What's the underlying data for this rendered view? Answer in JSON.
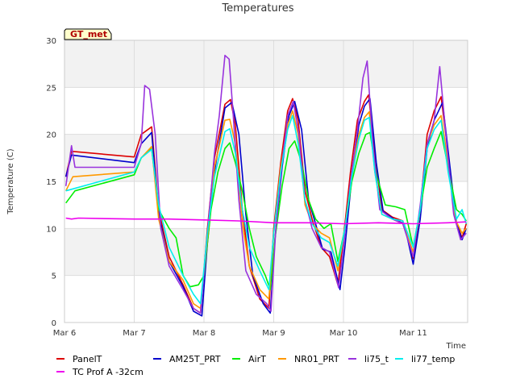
{
  "chart_data": {
    "type": "line",
    "title": "Temperatures",
    "xlabel": "Time",
    "ylabel": "Temperature (C)",
    "badge": "GT_met",
    "ylim": [
      0,
      30
    ],
    "yticks": [
      0,
      5,
      10,
      15,
      20,
      25,
      30
    ],
    "xlim": [
      0,
      5.78
    ],
    "xticks": [
      {
        "value": 0,
        "label": "Mar 6"
      },
      {
        "value": 1,
        "label": "Mar 7"
      },
      {
        "value": 2,
        "label": "Mar 8"
      },
      {
        "value": 3,
        "label": "Mar 9"
      },
      {
        "value": 4,
        "label": "Mar 10"
      },
      {
        "value": 5,
        "label": "Mar 11"
      }
    ],
    "grid": true,
    "legend_position": "bottom",
    "series": [
      {
        "name": "PanelT",
        "color": "#dd0000",
        "points": [
          [
            0.02,
            15.5
          ],
          [
            0.1,
            18.2
          ],
          [
            1.0,
            17.6
          ],
          [
            1.1,
            20.0
          ],
          [
            1.25,
            20.8
          ],
          [
            1.35,
            12.0
          ],
          [
            1.5,
            7.0
          ],
          [
            1.7,
            4.0
          ],
          [
            1.85,
            1.5
          ],
          [
            1.95,
            1.0
          ],
          [
            2.05,
            10.0
          ],
          [
            2.15,
            17.5
          ],
          [
            2.3,
            23.2
          ],
          [
            2.38,
            23.7
          ],
          [
            2.45,
            21.0
          ],
          [
            2.55,
            12.0
          ],
          [
            2.65,
            6.0
          ],
          [
            2.8,
            2.5
          ],
          [
            2.93,
            1.5
          ],
          [
            3.0,
            10.0
          ],
          [
            3.1,
            17.0
          ],
          [
            3.2,
            22.5
          ],
          [
            3.27,
            23.8
          ],
          [
            3.35,
            21.5
          ],
          [
            3.45,
            14.0
          ],
          [
            3.55,
            11.0
          ],
          [
            3.68,
            8.0
          ],
          [
            3.8,
            7.0
          ],
          [
            3.92,
            4.0
          ],
          [
            4.0,
            9.0
          ],
          [
            4.1,
            16.0
          ],
          [
            4.2,
            21.5
          ],
          [
            4.3,
            23.5
          ],
          [
            4.36,
            24.2
          ],
          [
            4.45,
            18.0
          ],
          [
            4.55,
            12.0
          ],
          [
            4.7,
            11.2
          ],
          [
            4.85,
            10.8
          ],
          [
            5.0,
            6.8
          ],
          [
            5.1,
            12.0
          ],
          [
            5.2,
            20.0
          ],
          [
            5.3,
            22.5
          ],
          [
            5.4,
            24.0
          ],
          [
            5.5,
            18.0
          ],
          [
            5.6,
            11.0
          ],
          [
            5.7,
            9.0
          ],
          [
            5.76,
            10.5
          ]
        ]
      },
      {
        "name": "AM25T_PRT",
        "color": "#0000cc",
        "points": [
          [
            0.02,
            15.5
          ],
          [
            0.1,
            17.8
          ],
          [
            1.0,
            17.0
          ],
          [
            1.1,
            19.0
          ],
          [
            1.25,
            20.2
          ],
          [
            1.35,
            11.5
          ],
          [
            1.5,
            6.5
          ],
          [
            1.7,
            3.8
          ],
          [
            1.85,
            1.2
          ],
          [
            1.97,
            0.7
          ],
          [
            2.05,
            8.5
          ],
          [
            2.15,
            16.0
          ],
          [
            2.3,
            22.8
          ],
          [
            2.4,
            23.4
          ],
          [
            2.5,
            20.0
          ],
          [
            2.6,
            11.5
          ],
          [
            2.7,
            5.0
          ],
          [
            2.85,
            2.0
          ],
          [
            2.95,
            1.0
          ],
          [
            3.02,
            9.0
          ],
          [
            3.12,
            16.5
          ],
          [
            3.22,
            22.0
          ],
          [
            3.3,
            23.5
          ],
          [
            3.4,
            20.5
          ],
          [
            3.5,
            13.0
          ],
          [
            3.6,
            10.5
          ],
          [
            3.7,
            7.8
          ],
          [
            3.82,
            7.5
          ],
          [
            3.95,
            3.5
          ],
          [
            4.02,
            8.0
          ],
          [
            4.12,
            15.5
          ],
          [
            4.22,
            21.0
          ],
          [
            4.3,
            23.0
          ],
          [
            4.38,
            23.8
          ],
          [
            4.47,
            17.0
          ],
          [
            4.57,
            11.8
          ],
          [
            4.72,
            11.0
          ],
          [
            4.87,
            10.5
          ],
          [
            5.0,
            6.2
          ],
          [
            5.1,
            11.0
          ],
          [
            5.2,
            18.5
          ],
          [
            5.3,
            21.5
          ],
          [
            5.42,
            23.4
          ],
          [
            5.52,
            17.0
          ],
          [
            5.62,
            10.5
          ],
          [
            5.7,
            8.8
          ],
          [
            5.76,
            10.0
          ]
        ]
      },
      {
        "name": "AirT",
        "color": "#00ee00",
        "points": [
          [
            0.02,
            12.7
          ],
          [
            0.15,
            14.0
          ],
          [
            1.0,
            15.7
          ],
          [
            1.1,
            17.5
          ],
          [
            1.25,
            18.5
          ],
          [
            1.35,
            12.0
          ],
          [
            1.5,
            10.0
          ],
          [
            1.6,
            9.0
          ],
          [
            1.7,
            5.0
          ],
          [
            1.8,
            3.8
          ],
          [
            1.92,
            4.0
          ],
          [
            2.0,
            5.0
          ],
          [
            2.1,
            12.0
          ],
          [
            2.2,
            16.0
          ],
          [
            2.3,
            18.5
          ],
          [
            2.37,
            19.1
          ],
          [
            2.45,
            17.0
          ],
          [
            2.55,
            14.0
          ],
          [
            2.65,
            10.0
          ],
          [
            2.75,
            7.0
          ],
          [
            2.88,
            5.0
          ],
          [
            2.95,
            3.5
          ],
          [
            3.02,
            9.0
          ],
          [
            3.12,
            14.5
          ],
          [
            3.22,
            18.5
          ],
          [
            3.3,
            19.3
          ],
          [
            3.4,
            17.0
          ],
          [
            3.5,
            13.0
          ],
          [
            3.6,
            11.0
          ],
          [
            3.72,
            10.0
          ],
          [
            3.82,
            10.5
          ],
          [
            3.92,
            6.5
          ],
          [
            4.02,
            10.0
          ],
          [
            4.12,
            15.0
          ],
          [
            4.22,
            18.0
          ],
          [
            4.32,
            20.0
          ],
          [
            4.38,
            20.2
          ],
          [
            4.48,
            15.5
          ],
          [
            4.6,
            12.5
          ],
          [
            4.75,
            12.3
          ],
          [
            4.88,
            12.0
          ],
          [
            5.0,
            8.0
          ],
          [
            5.1,
            12.0
          ],
          [
            5.2,
            16.5
          ],
          [
            5.3,
            18.5
          ],
          [
            5.4,
            20.3
          ],
          [
            5.5,
            16.5
          ],
          [
            5.62,
            12.0
          ],
          [
            5.7,
            11.5
          ],
          [
            5.76,
            10.8
          ]
        ]
      },
      {
        "name": "NR01_PRT",
        "color": "#ff9900",
        "points": [
          [
            0.02,
            14.0
          ],
          [
            0.12,
            15.5
          ],
          [
            1.0,
            16.0
          ],
          [
            1.1,
            17.5
          ],
          [
            1.25,
            18.7
          ],
          [
            1.35,
            11.0
          ],
          [
            1.5,
            6.5
          ],
          [
            1.7,
            4.5
          ],
          [
            1.85,
            2.0
          ],
          [
            1.95,
            1.5
          ],
          [
            2.05,
            9.0
          ],
          [
            2.15,
            16.5
          ],
          [
            2.3,
            21.5
          ],
          [
            2.37,
            21.6
          ],
          [
            2.45,
            19.0
          ],
          [
            2.55,
            10.5
          ],
          [
            2.65,
            6.0
          ],
          [
            2.8,
            3.5
          ],
          [
            2.93,
            2.5
          ],
          [
            3.0,
            9.5
          ],
          [
            3.1,
            16.5
          ],
          [
            3.2,
            21.0
          ],
          [
            3.27,
            22.5
          ],
          [
            3.35,
            20.0
          ],
          [
            3.45,
            12.5
          ],
          [
            3.55,
            10.5
          ],
          [
            3.68,
            9.5
          ],
          [
            3.8,
            9.0
          ],
          [
            3.92,
            5.5
          ],
          [
            4.02,
            10.0
          ],
          [
            4.12,
            16.0
          ],
          [
            4.22,
            20.0
          ],
          [
            4.3,
            21.8
          ],
          [
            4.37,
            22.4
          ],
          [
            4.45,
            16.0
          ],
          [
            4.55,
            11.5
          ],
          [
            4.7,
            11.0
          ],
          [
            4.85,
            10.5
          ],
          [
            5.0,
            7.5
          ],
          [
            5.1,
            12.0
          ],
          [
            5.2,
            19.0
          ],
          [
            5.3,
            21.0
          ],
          [
            5.4,
            22.0
          ],
          [
            5.5,
            17.0
          ],
          [
            5.6,
            11.0
          ],
          [
            5.7,
            9.5
          ],
          [
            5.76,
            10.0
          ]
        ]
      },
      {
        "name": "li75_t",
        "color": "#9933dd",
        "points": [
          [
            0.02,
            14.5
          ],
          [
            0.1,
            18.8
          ],
          [
            0.15,
            16.5
          ],
          [
            1.0,
            16.5
          ],
          [
            1.1,
            19.0
          ],
          [
            1.15,
            25.2
          ],
          [
            1.22,
            24.8
          ],
          [
            1.3,
            20.0
          ],
          [
            1.38,
            10.0
          ],
          [
            1.5,
            6.0
          ],
          [
            1.7,
            3.5
          ],
          [
            1.85,
            1.5
          ],
          [
            1.95,
            1.0
          ],
          [
            2.05,
            9.5
          ],
          [
            2.15,
            18.0
          ],
          [
            2.22,
            22.0
          ],
          [
            2.3,
            28.4
          ],
          [
            2.36,
            28.0
          ],
          [
            2.42,
            22.0
          ],
          [
            2.5,
            13.0
          ],
          [
            2.6,
            5.5
          ],
          [
            2.75,
            3.0
          ],
          [
            2.9,
            2.0
          ],
          [
            2.96,
            1.2
          ],
          [
            3.03,
            10.0
          ],
          [
            3.12,
            17.0
          ],
          [
            3.2,
            22.0
          ],
          [
            3.28,
            23.5
          ],
          [
            3.36,
            20.0
          ],
          [
            3.45,
            13.0
          ],
          [
            3.55,
            10.0
          ],
          [
            3.68,
            8.0
          ],
          [
            3.8,
            7.5
          ],
          [
            3.93,
            3.7
          ],
          [
            4.0,
            8.0
          ],
          [
            4.1,
            15.0
          ],
          [
            4.2,
            20.5
          ],
          [
            4.28,
            26.0
          ],
          [
            4.34,
            27.8
          ],
          [
            4.42,
            19.0
          ],
          [
            4.52,
            12.0
          ],
          [
            4.7,
            11.0
          ],
          [
            4.85,
            10.5
          ],
          [
            5.0,
            7.0
          ],
          [
            5.1,
            12.5
          ],
          [
            5.2,
            19.0
          ],
          [
            5.3,
            21.5
          ],
          [
            5.38,
            27.2
          ],
          [
            5.48,
            19.0
          ],
          [
            5.58,
            11.5
          ],
          [
            5.68,
            8.8
          ],
          [
            5.76,
            9.5
          ]
        ]
      },
      {
        "name": "li77_temp",
        "color": "#00eeee",
        "points": [
          [
            0.02,
            14.0
          ],
          [
            0.12,
            14.2
          ],
          [
            1.0,
            16.0
          ],
          [
            1.1,
            17.5
          ],
          [
            1.25,
            18.4
          ],
          [
            1.35,
            12.5
          ],
          [
            1.5,
            8.0
          ],
          [
            1.7,
            5.0
          ],
          [
            1.85,
            3.0
          ],
          [
            1.95,
            2.0
          ],
          [
            2.05,
            9.5
          ],
          [
            2.15,
            15.5
          ],
          [
            2.3,
            20.3
          ],
          [
            2.37,
            20.6
          ],
          [
            2.45,
            18.0
          ],
          [
            2.55,
            12.0
          ],
          [
            2.65,
            8.0
          ],
          [
            2.8,
            5.5
          ],
          [
            2.93,
            3.5
          ],
          [
            3.0,
            9.5
          ],
          [
            3.1,
            16.0
          ],
          [
            3.2,
            20.5
          ],
          [
            3.27,
            22.0
          ],
          [
            3.35,
            19.0
          ],
          [
            3.45,
            13.0
          ],
          [
            3.55,
            10.5
          ],
          [
            3.68,
            9.0
          ],
          [
            3.8,
            8.5
          ],
          [
            3.92,
            6.0
          ],
          [
            4.02,
            10.0
          ],
          [
            4.12,
            15.5
          ],
          [
            4.22,
            19.5
          ],
          [
            4.3,
            21.5
          ],
          [
            4.37,
            21.8
          ],
          [
            4.45,
            16.0
          ],
          [
            4.55,
            11.5
          ],
          [
            4.7,
            11.0
          ],
          [
            4.85,
            10.8
          ],
          [
            5.0,
            8.0
          ],
          [
            5.1,
            12.0
          ],
          [
            5.2,
            18.5
          ],
          [
            5.3,
            20.5
          ],
          [
            5.4,
            21.5
          ],
          [
            5.5,
            16.0
          ],
          [
            5.62,
            11.0
          ],
          [
            5.7,
            12.0
          ],
          [
            5.76,
            10.5
          ]
        ]
      },
      {
        "name": "TC Prof A -32cm",
        "color": "#ee00ee",
        "points": [
          [
            0.02,
            11.1
          ],
          [
            0.1,
            11.0
          ],
          [
            0.2,
            11.1
          ],
          [
            1.0,
            11.0
          ],
          [
            1.5,
            11.0
          ],
          [
            2.0,
            10.9
          ],
          [
            2.5,
            10.8
          ],
          [
            3.0,
            10.6
          ],
          [
            3.5,
            10.6
          ],
          [
            4.0,
            10.5
          ],
          [
            4.5,
            10.6
          ],
          [
            5.0,
            10.5
          ],
          [
            5.5,
            10.6
          ],
          [
            5.76,
            10.7
          ]
        ]
      }
    ]
  }
}
